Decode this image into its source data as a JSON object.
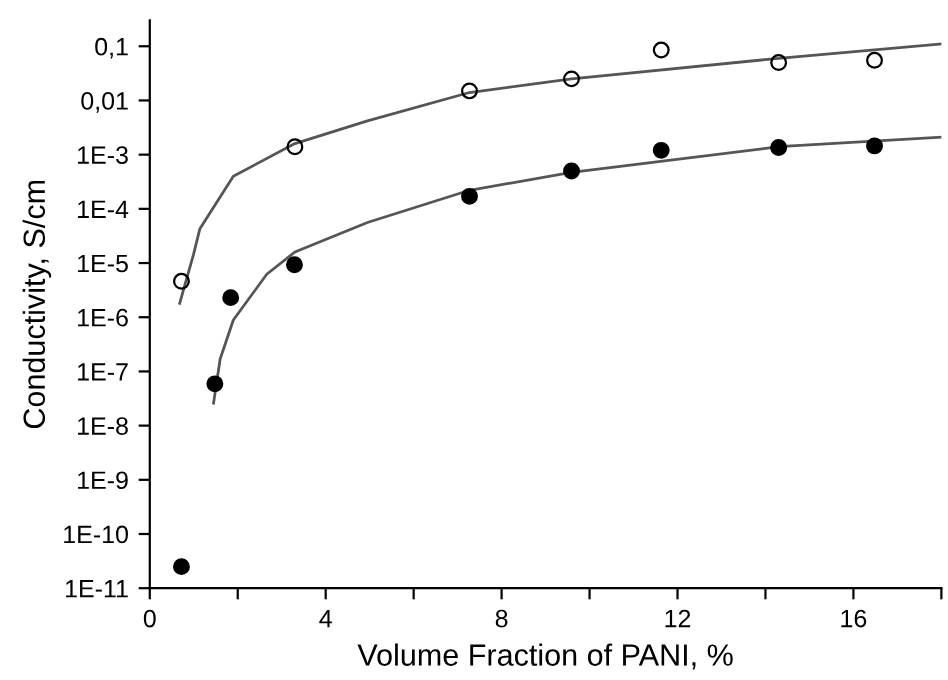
{
  "chart_data": {
    "type": "scatter",
    "xlabel": "Volume Fraction of PANI, %",
    "ylabel": "Conductivity, S/cm",
    "log": "y",
    "grid": false,
    "legend": false,
    "xlim": [
      0,
      18
    ],
    "ylim": [
      1e-11,
      0.3
    ],
    "xticks": [
      0,
      {
        "value": 2,
        "label": null
      },
      4,
      {
        "value": 6,
        "label": null
      },
      8,
      {
        "value": 10,
        "label": null
      },
      12,
      {
        "value": 14,
        "label": null
      },
      16,
      {
        "value": 18,
        "label": null
      }
    ],
    "yticks": [
      {
        "value": 1e-11,
        "label": "1E-11"
      },
      {
        "value": 1e-10,
        "label": "1E-10"
      },
      {
        "value": 1e-09,
        "label": "1E-9"
      },
      {
        "value": 1e-08,
        "label": "1E-8"
      },
      {
        "value": 1e-07,
        "label": "1E-7"
      },
      {
        "value": 1e-06,
        "label": "1E-6"
      },
      {
        "value": 1e-05,
        "label": "1E-5"
      },
      {
        "value": 0.0001,
        "label": "1E-4"
      },
      {
        "value": 0.001,
        "label": "1E-3"
      },
      {
        "value": 0.01,
        "label": "0,01"
      },
      {
        "value": 0.1,
        "label": "0,1"
      }
    ],
    "series": [
      {
        "marker": "circle",
        "color": "#000000",
        "x": [
          0.72,
          3.3,
          7.27,
          9.59,
          11.63,
          14.3,
          16.48
        ],
        "values": [
          4.6e-06,
          0.0014,
          0.015,
          0.025,
          0.085,
          0.05,
          0.055
        ]
      },
      {
        "marker": "circle",
        "color": "#000000",
        "x": [
          0.72,
          1.48,
          1.84,
          3.29,
          7.27,
          9.59,
          11.63,
          14.3,
          16.48
        ],
        "values": [
          2.5e-11,
          5.9e-08,
          2.3e-06,
          9.3e-06,
          0.00017,
          0.0005,
          0.0012,
          0.00135,
          0.00145
        ]
      },
      {
        "type": "line",
        "marker": "none",
        "color": "#555555",
        "x": [
          0.68,
          0.99,
          1.14,
          1.9,
          3.3,
          4.95,
          7.27,
          9.59,
          14.3,
          18
        ],
        "values": [
          1.8e-06,
          1.4e-05,
          4.3e-05,
          0.0004,
          0.0016,
          0.0042,
          0.014,
          0.025,
          0.06,
          0.11
        ]
      },
      {
        "type": "line",
        "marker": "none",
        "color": "#555555",
        "x": [
          1.45,
          1.6,
          1.9,
          2.66,
          3.3,
          4.95,
          7.27,
          9.59,
          14.3,
          18
        ],
        "values": [
          2.6e-08,
          1.7e-07,
          8.9e-07,
          6.2e-06,
          1.6e-05,
          5.6e-05,
          0.00022,
          0.00047,
          0.0014,
          0.0021
        ]
      }
    ]
  }
}
